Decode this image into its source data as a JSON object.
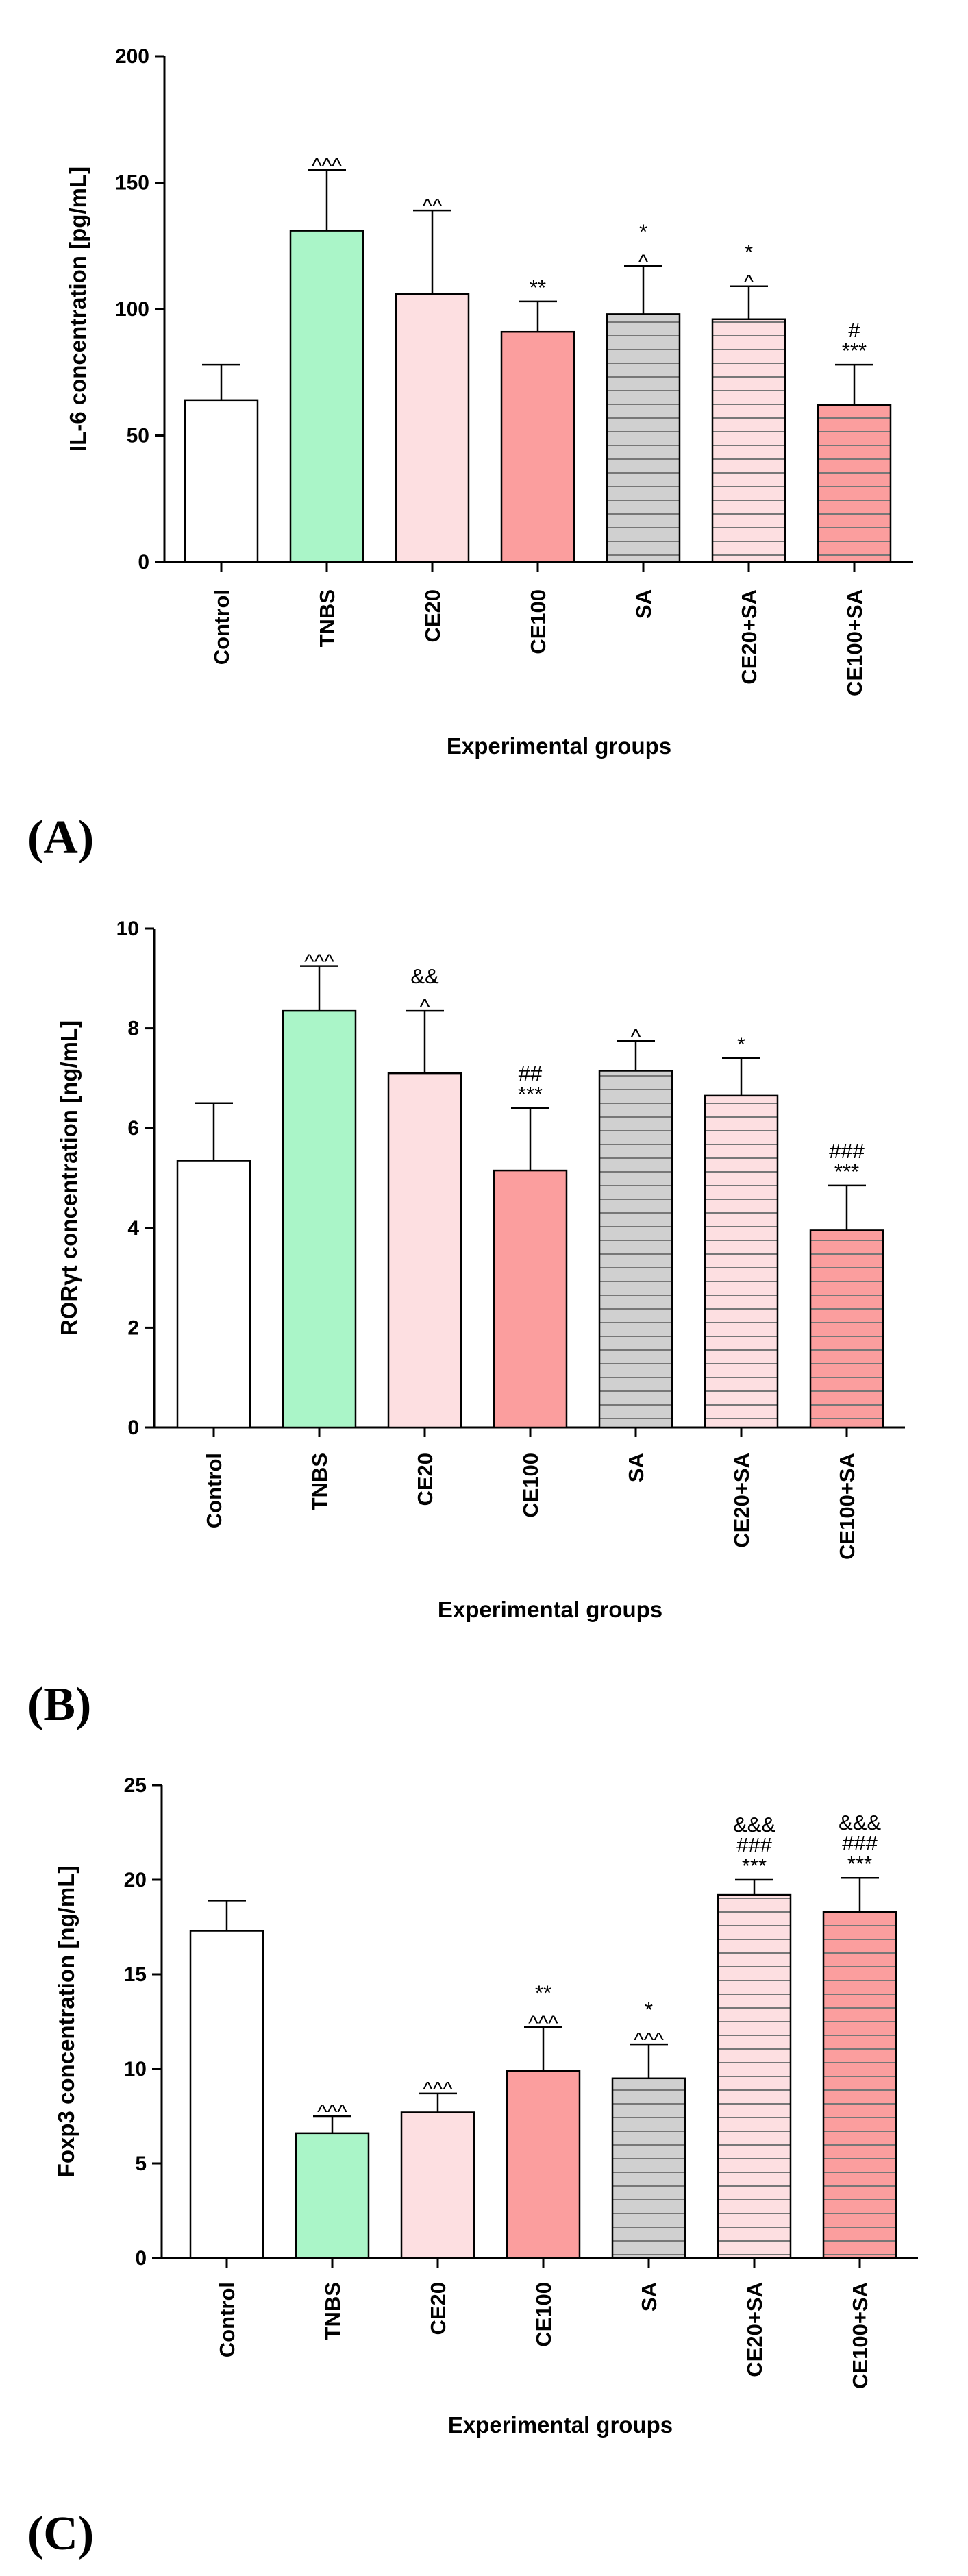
{
  "figure": {
    "colors": {
      "Control": "#ffffff",
      "TNBS": "#aaf5c8",
      "CE20": "#fddfe1",
      "CE100": "#fb9e9e",
      "SA": "#d0d0d0",
      "CE20+SA": "#fddfe1",
      "CE100+SA": "#fb9e9e"
    },
    "stripes": {
      "Control": false,
      "TNBS": false,
      "CE20": false,
      "CE100": false,
      "SA": true,
      "CE20+SA": true,
      "CE100+SA": true
    }
  },
  "chart_data": [
    {
      "panel": "(A)",
      "type": "bar",
      "title": "",
      "categories": [
        "Control",
        "TNBS",
        "CE20",
        "CE100",
        "SA",
        "CE20+SA",
        "CE100+SA"
      ],
      "values": [
        64,
        131,
        106,
        91,
        98,
        96,
        62
      ],
      "errors": [
        14,
        24,
        33,
        12,
        19,
        13,
        16
      ],
      "annotations": [
        [],
        [
          "^^^"
        ],
        [
          "^^"
        ],
        [
          "**"
        ],
        [
          "*",
          "^"
        ],
        [
          "*",
          "^"
        ],
        [
          "#",
          "***"
        ]
      ],
      "ylabel": "IL-6 concentration [pg/mL]",
      "xlabel": "Experimental groups",
      "ylim": [
        0,
        200
      ],
      "yticks": [
        0,
        50,
        100,
        150,
        200
      ]
    },
    {
      "panel": "(B)",
      "type": "bar",
      "title": "",
      "categories": [
        "Control",
        "TNBS",
        "CE20",
        "CE100",
        "SA",
        "CE20+SA",
        "CE100+SA"
      ],
      "values": [
        5.35,
        8.35,
        7.1,
        5.15,
        7.15,
        6.65,
        3.95
      ],
      "errors": [
        1.15,
        0.9,
        1.25,
        1.25,
        0.6,
        0.75,
        0.9
      ],
      "annotations": [
        [],
        [
          "^^^"
        ],
        [
          "&&",
          "^"
        ],
        [
          "##",
          "***"
        ],
        [
          "^"
        ],
        [
          "*"
        ],
        [
          "###",
          "***"
        ]
      ],
      "ylabel": "RORγt concentration [ng/mL]",
      "xlabel": "Experimental groups",
      "ylim": [
        0,
        10
      ],
      "yticks": [
        0,
        2,
        4,
        6,
        8,
        10
      ]
    },
    {
      "panel": "(C)",
      "type": "bar",
      "title": "",
      "categories": [
        "Control",
        "TNBS",
        "CE20",
        "CE100",
        "SA",
        "CE20+SA",
        "CE100+SA"
      ],
      "values": [
        17.3,
        6.6,
        7.7,
        9.9,
        9.5,
        19.2,
        18.3
      ],
      "errors": [
        1.6,
        0.9,
        1.0,
        2.3,
        1.8,
        0.8,
        1.8
      ],
      "annotations": [
        [],
        [
          "^^^"
        ],
        [
          "^^^"
        ],
        [
          "**",
          "^^^"
        ],
        [
          "*",
          "^^^"
        ],
        [
          "&&&",
          "###",
          "***"
        ],
        [
          "&&&",
          "###",
          "***"
        ]
      ],
      "ylabel": "Foxp3 concentration [ng/mL]",
      "xlabel": "Experimental groups",
      "ylim": [
        0,
        25
      ],
      "yticks": [
        0,
        5,
        10,
        15,
        20,
        25
      ]
    }
  ]
}
